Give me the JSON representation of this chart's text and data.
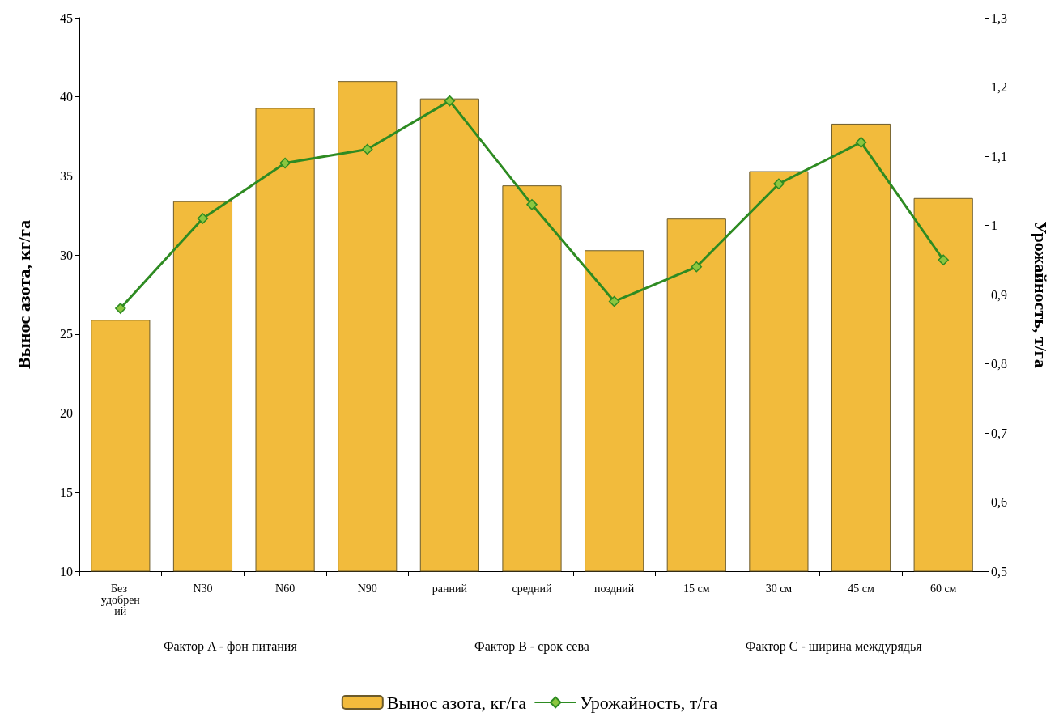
{
  "chart_data": {
    "type": "bar",
    "ylabel": "Вынос азота, кг/га",
    "y2label": "Урожайность, т/га",
    "categories": [
      "Без удобрений",
      "N30",
      "N60",
      "N90",
      "ранний",
      "средний",
      "поздний",
      "15 см",
      "30 см",
      "45 см",
      "60 см"
    ],
    "series": [
      {
        "name": "Вынос азота, кг/га",
        "color": "#f2bb3c",
        "values": [
          25.9,
          33.4,
          39.3,
          41.0,
          39.9,
          34.4,
          30.3,
          32.3,
          35.3,
          38.3,
          33.6
        ]
      },
      {
        "name": "Урожайность, т/га",
        "type": "line",
        "axis": "y2",
        "color": "#2e8b22",
        "marker": "diamond",
        "values": [
          0.88,
          1.01,
          1.09,
          1.11,
          1.18,
          1.03,
          0.89,
          0.94,
          1.06,
          1.12,
          0.95
        ]
      }
    ],
    "annotations": [
      "Фактор A - фон питания",
      "Фактор B - срок сева",
      "Фактор C - ширина междурядья"
    ],
    "ylim": [
      10,
      45
    ],
    "yticks": [
      10,
      15,
      20,
      25,
      30,
      35,
      40,
      45
    ],
    "y2lim": [
      0.5,
      1.3
    ],
    "y2ticks": [
      {
        "value": 0.5,
        "label": "0,5"
      },
      {
        "value": 0.6,
        "label": "0,6"
      },
      {
        "value": 0.7,
        "label": "0,7"
      },
      {
        "value": 0.8,
        "label": "0,8"
      },
      {
        "value": 0.9,
        "label": "0,9"
      },
      {
        "value": 1,
        "label": "1"
      },
      {
        "value": 1.1,
        "label": "1,1"
      },
      {
        "value": 1.2,
        "label": "1,2"
      },
      {
        "value": 1.3,
        "label": "1,3"
      }
    ],
    "grid": false,
    "legend": "bottom"
  }
}
